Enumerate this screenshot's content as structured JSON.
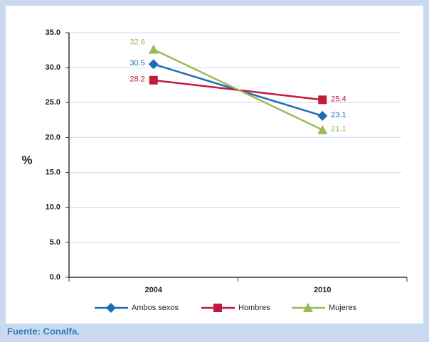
{
  "chart_data": {
    "type": "line",
    "y_label": "%",
    "categories": [
      "2004",
      "2010"
    ],
    "series": [
      {
        "name": "Ambos sexos",
        "color": "#1f6db3",
        "marker": "diamond",
        "values": [
          30.5,
          23.1
        ]
      },
      {
        "name": "Hombres",
        "color": "#c4183c",
        "marker": "square",
        "values": [
          28.2,
          25.4
        ]
      },
      {
        "name": "Mujeres",
        "color": "#9bbb59",
        "marker": "triangle",
        "values": [
          32.6,
          21.1
        ]
      }
    ],
    "ylim": [
      0,
      35
    ],
    "yticks": [
      {
        "value": 0,
        "label": "0.0"
      },
      {
        "value": 5,
        "label": "5.0"
      },
      {
        "value": 10,
        "label": "10.0"
      },
      {
        "value": 15,
        "label": "15.0"
      },
      {
        "value": 20,
        "label": "20.0"
      },
      {
        "value": 25,
        "label": "25.0"
      },
      {
        "value": 30,
        "label": "30.0"
      },
      {
        "value": 35,
        "label": "35.0"
      }
    ],
    "grid": true,
    "legend": "bottom"
  },
  "footer": {
    "source": "Fuente: Conalfa."
  }
}
